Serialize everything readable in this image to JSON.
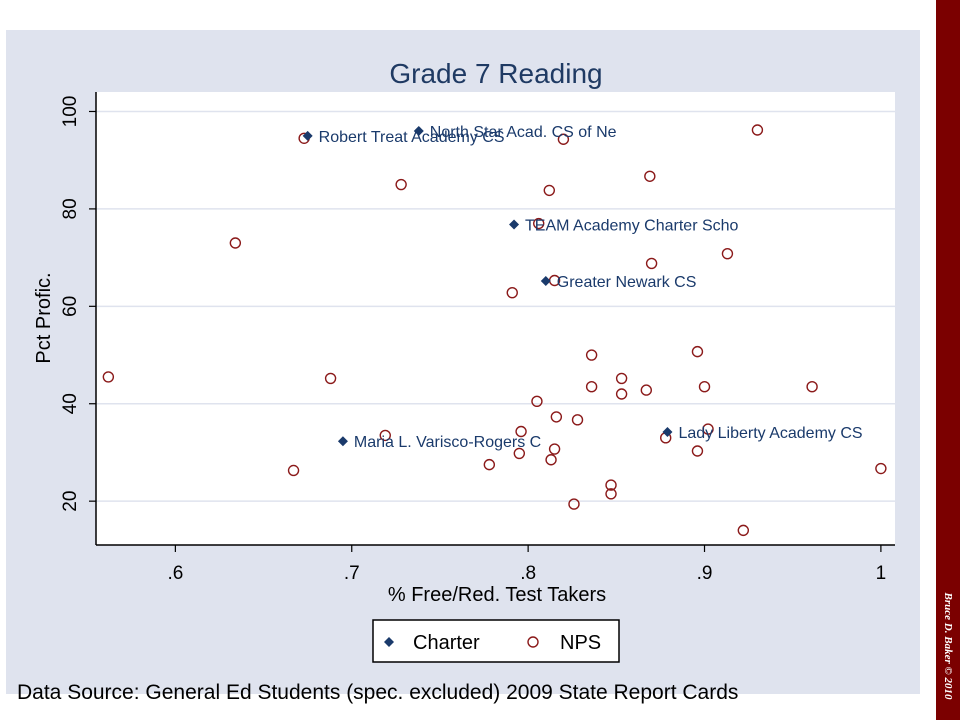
{
  "colors": {
    "panel": "#dfe3ee",
    "plot_area": "#ffffff",
    "title": "#1f3a63",
    "charter": "#1a3a6b",
    "nps": "#8b1a1a",
    "side_bar": "#7b0000",
    "grid": "#dfe3ee"
  },
  "footer": {
    "source": "Data Source: General Ed Students (spec. excluded) 2009 State Report Cards",
    "credit": "Bruce D. Baker © 2010"
  },
  "chart_data": {
    "type": "scatter",
    "title": "Grade 7 Reading",
    "xlabel": "% Free/Red. Test Takers",
    "ylabel": "Pct Profic.",
    "xlim": [
      0.555,
      1.008
    ],
    "ylim": [
      11,
      104
    ],
    "xticks": [
      0.6,
      0.7,
      0.8,
      0.9,
      1.0
    ],
    "xtick_labels": [
      ".6",
      ".7",
      ".8",
      ".9",
      "1"
    ],
    "yticks": [
      20,
      40,
      60,
      80,
      100
    ],
    "ytick_labels": [
      "20",
      "40",
      "60",
      "80",
      "100"
    ],
    "grid": true,
    "legend_position": "bottom-center",
    "series": [
      {
        "name": "Charter",
        "marker": "diamond",
        "points": [
          {
            "x": 0.675,
            "y": 95,
            "label": "Robert Treat Academy CS"
          },
          {
            "x": 0.738,
            "y": 96,
            "label": "North Star Acad. CS of Ne"
          },
          {
            "x": 0.792,
            "y": 76.8,
            "label": "TEAM Academy Charter Scho"
          },
          {
            "x": 0.81,
            "y": 65.2,
            "label": "Greater Newark CS"
          },
          {
            "x": 0.695,
            "y": 32.3,
            "label": "Maria L. Varisco-Rogers C"
          },
          {
            "x": 0.879,
            "y": 34.2,
            "label": "Lady Liberty Academy CS"
          }
        ]
      },
      {
        "name": "NPS",
        "marker": "hollow-circle",
        "points": [
          {
            "x": 0.562,
            "y": 45.5
          },
          {
            "x": 0.634,
            "y": 73
          },
          {
            "x": 0.667,
            "y": 26.3
          },
          {
            "x": 0.673,
            "y": 94.5
          },
          {
            "x": 0.688,
            "y": 45.2
          },
          {
            "x": 0.719,
            "y": 33.5
          },
          {
            "x": 0.728,
            "y": 85
          },
          {
            "x": 0.778,
            "y": 27.5
          },
          {
            "x": 0.791,
            "y": 62.8
          },
          {
            "x": 0.795,
            "y": 29.8
          },
          {
            "x": 0.796,
            "y": 34.3
          },
          {
            "x": 0.805,
            "y": 40.5
          },
          {
            "x": 0.806,
            "y": 77
          },
          {
            "x": 0.812,
            "y": 83.8
          },
          {
            "x": 0.813,
            "y": 28.5
          },
          {
            "x": 0.815,
            "y": 30.7
          },
          {
            "x": 0.815,
            "y": 65.3
          },
          {
            "x": 0.816,
            "y": 37.3
          },
          {
            "x": 0.82,
            "y": 94.3
          },
          {
            "x": 0.826,
            "y": 19.4
          },
          {
            "x": 0.828,
            "y": 36.7
          },
          {
            "x": 0.836,
            "y": 43.5
          },
          {
            "x": 0.836,
            "y": 50
          },
          {
            "x": 0.847,
            "y": 23.3
          },
          {
            "x": 0.847,
            "y": 21.5
          },
          {
            "x": 0.853,
            "y": 45.2
          },
          {
            "x": 0.853,
            "y": 42
          },
          {
            "x": 0.867,
            "y": 42.8
          },
          {
            "x": 0.869,
            "y": 86.7
          },
          {
            "x": 0.87,
            "y": 68.8
          },
          {
            "x": 0.878,
            "y": 33
          },
          {
            "x": 0.896,
            "y": 30.3
          },
          {
            "x": 0.896,
            "y": 50.7
          },
          {
            "x": 0.9,
            "y": 43.5
          },
          {
            "x": 0.902,
            "y": 34.8
          },
          {
            "x": 0.913,
            "y": 70.8
          },
          {
            "x": 0.922,
            "y": 14
          },
          {
            "x": 0.93,
            "y": 96.2
          },
          {
            "x": 0.961,
            "y": 43.5
          },
          {
            "x": 1.0,
            "y": 26.7
          }
        ]
      }
    ]
  }
}
